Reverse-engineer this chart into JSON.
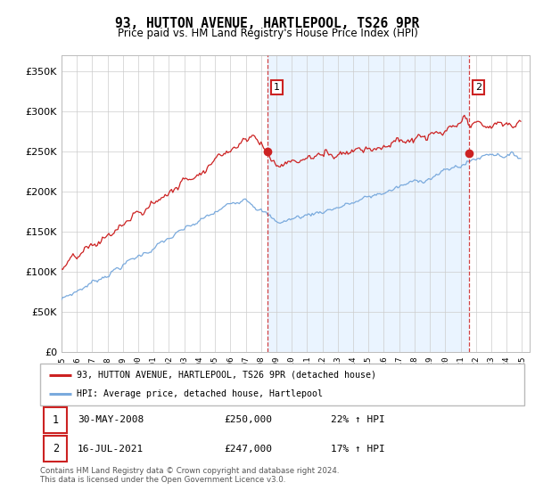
{
  "title": "93, HUTTON AVENUE, HARTLEPOOL, TS26 9PR",
  "subtitle": "Price paid vs. HM Land Registry's House Price Index (HPI)",
  "legend_line1": "93, HUTTON AVENUE, HARTLEPOOL, TS26 9PR (detached house)",
  "legend_line2": "HPI: Average price, detached house, Hartlepool",
  "annotation1_date": "30-MAY-2008",
  "annotation1_price": "£250,000",
  "annotation1_hpi": "22% ↑ HPI",
  "annotation2_date": "16-JUL-2021",
  "annotation2_price": "£247,000",
  "annotation2_hpi": "17% ↑ HPI",
  "sale1_year": 2008.42,
  "sale1_price": 250000,
  "sale2_year": 2021.54,
  "sale2_price": 247000,
  "hpi_color": "#7aaadd",
  "price_color": "#cc2222",
  "annotation_color": "#cc2222",
  "shade_color": "#ddeeff",
  "background_color": "#ffffff",
  "grid_color": "#cccccc",
  "footnote": "Contains HM Land Registry data © Crown copyright and database right 2024.\nThis data is licensed under the Open Government Licence v3.0.",
  "ylim_min": 0,
  "ylim_max": 370000,
  "xmin": 1995,
  "xmax": 2025.5
}
